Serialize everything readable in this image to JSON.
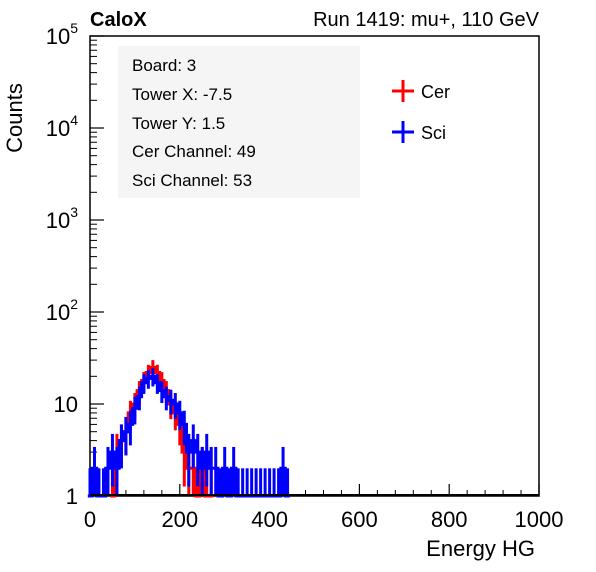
{
  "header": {
    "brand": "CaloX",
    "run": "Run 1419: mu+, 110 GeV"
  },
  "info_box": {
    "board": "Board: 3",
    "tower_x": "Tower X: -7.5",
    "tower_y": "Tower Y: 1.5",
    "cer_channel": "Cer Channel: 49",
    "sci_channel": "Sci Channel: 53"
  },
  "chart_data": {
    "type": "line",
    "title": "",
    "xlabel": "Energy HG",
    "ylabel": "Counts",
    "xlim": [
      0,
      1000
    ],
    "ylim": [
      1,
      100000
    ],
    "yscale": "log",
    "x_ticks": [
      "0",
      "200",
      "400",
      "600",
      "800",
      "1000"
    ],
    "y_ticks": [
      {
        "value": 1,
        "base": "1",
        "exp": ""
      },
      {
        "value": 10,
        "base": "10",
        "exp": ""
      },
      {
        "value": 100,
        "base": "10",
        "exp": "2"
      },
      {
        "value": 1000,
        "base": "10",
        "exp": "3"
      },
      {
        "value": 10000,
        "base": "10",
        "exp": "4"
      },
      {
        "value": 100000,
        "base": "10",
        "exp": "5"
      }
    ],
    "legend_position": "top-right",
    "series": [
      {
        "name": "Cer",
        "color": "#ff0000",
        "x": [
          50,
          60,
          70,
          80,
          90,
          100,
          110,
          120,
          130,
          140,
          150,
          160,
          170,
          180,
          190,
          200,
          210,
          220,
          230,
          240,
          250,
          260,
          270
        ],
        "y": [
          1,
          3,
          4,
          5,
          8,
          10,
          14,
          18,
          22,
          25,
          22,
          18,
          14,
          10,
          8,
          6,
          3,
          2,
          2,
          1,
          2,
          1,
          1
        ]
      },
      {
        "name": "Sci",
        "color": "#0000ff",
        "x": [
          0,
          10,
          20,
          30,
          40,
          50,
          60,
          70,
          80,
          90,
          100,
          110,
          120,
          130,
          140,
          150,
          160,
          170,
          180,
          190,
          200,
          210,
          220,
          230,
          240,
          250,
          260,
          270,
          280,
          290,
          300,
          310,
          320,
          330,
          340,
          350,
          360,
          370,
          380,
          390,
          400,
          410,
          420,
          430,
          440
        ],
        "y": [
          1,
          2,
          1,
          1,
          2,
          3,
          2,
          4,
          5,
          6,
          9,
          12,
          17,
          19,
          20,
          17,
          14,
          12,
          11,
          10,
          8,
          6,
          3,
          4,
          3,
          2,
          3,
          2,
          2,
          1,
          2,
          1,
          2,
          1,
          1,
          1,
          1,
          1,
          1,
          1,
          1,
          1,
          1,
          2,
          1
        ]
      }
    ]
  }
}
